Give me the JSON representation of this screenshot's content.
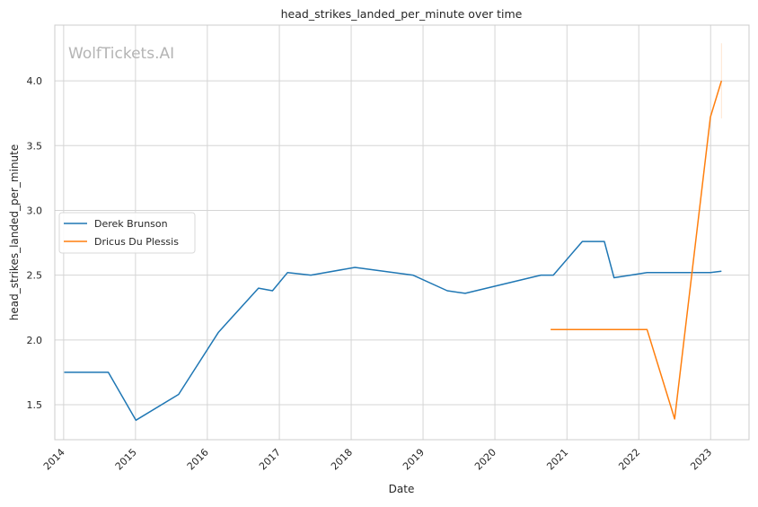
{
  "watermark": "WolfTickets.AI",
  "chart_data": {
    "type": "line",
    "title": "head_strikes_landed_per_minute over time",
    "xlabel": "Date",
    "ylabel": "head_strikes_landed_per_minute",
    "x_ticks": [
      "2014",
      "2015",
      "2016",
      "2017",
      "2018",
      "2019",
      "2020",
      "2021",
      "2022",
      "2023"
    ],
    "y_ticks": [
      "1.5",
      "2.0",
      "2.5",
      "3.0",
      "3.5",
      "4.0"
    ],
    "xlim": [
      "2013-11-17",
      "2023-07-15"
    ],
    "ylim": [
      1.23,
      4.43
    ],
    "grid": true,
    "legend_position": "center-left",
    "series": [
      {
        "name": "Derek Brunson",
        "color": "#1f77b4",
        "points": [
          {
            "x": "2014-01-04",
            "y": 1.75
          },
          {
            "x": "2014-08-16",
            "y": 1.75
          },
          {
            "x": "2015-01-03",
            "y": 1.38
          },
          {
            "x": "2015-08-08",
            "y": 1.58
          },
          {
            "x": "2016-02-27",
            "y": 2.06
          },
          {
            "x": "2016-09-17",
            "y": 2.4
          },
          {
            "x": "2016-11-27",
            "y": 2.38
          },
          {
            "x": "2017-02-11",
            "y": 2.52
          },
          {
            "x": "2017-06-10",
            "y": 2.5
          },
          {
            "x": "2018-01-20",
            "y": 2.56
          },
          {
            "x": "2018-11-10",
            "y": 2.5
          },
          {
            "x": "2019-05-04",
            "y": 2.38
          },
          {
            "x": "2019-08-03",
            "y": 2.36
          },
          {
            "x": "2020-08-22",
            "y": 2.5
          },
          {
            "x": "2020-10-24",
            "y": 2.5
          },
          {
            "x": "2021-03-20",
            "y": 2.76
          },
          {
            "x": "2021-07-10",
            "y": 2.76
          },
          {
            "x": "2021-08-28",
            "y": 2.48
          },
          {
            "x": "2022-02-12",
            "y": 2.52
          },
          {
            "x": "2022-12-31",
            "y": 2.52
          },
          {
            "x": "2023-02-25",
            "y": 2.53
          }
        ]
      },
      {
        "name": "Dricus Du Plessis",
        "color": "#ff7f0e",
        "points": [
          {
            "x": "2020-10-10",
            "y": 2.08
          },
          {
            "x": "2022-02-12",
            "y": 2.08
          },
          {
            "x": "2022-07-02",
            "y": 1.39
          },
          {
            "x": "2022-12-31",
            "y": 3.72
          },
          {
            "x": "2023-02-25",
            "y": 4.0
          }
        ]
      }
    ]
  }
}
